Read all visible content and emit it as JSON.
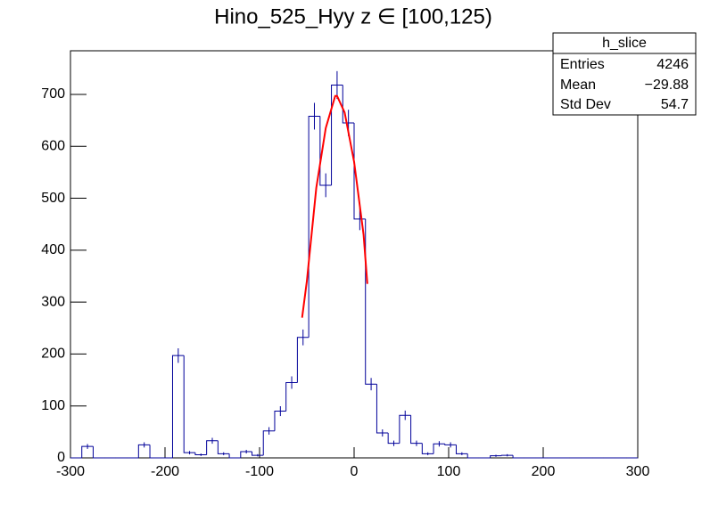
{
  "chart_data": {
    "type": "histogram",
    "title": "Hino_525_Hyy z  ∈ [100,125)",
    "bins": [
      -300,
      -288,
      -276,
      -264,
      -252,
      -240,
      -228,
      -216,
      -204,
      -192,
      -180,
      -168,
      -156,
      -144,
      -132,
      -120,
      -108,
      -96,
      -84,
      -72,
      -60,
      -48,
      -36,
      -24,
      -12,
      0,
      12,
      24,
      36,
      48,
      60,
      72,
      84,
      96,
      108,
      120,
      132,
      144,
      156,
      168,
      180,
      192,
      204,
      216,
      228,
      240,
      252,
      264,
      276,
      288,
      300
    ],
    "values": [
      0,
      22,
      0,
      0,
      0,
      0,
      25,
      0,
      0,
      197,
      10,
      6,
      33,
      8,
      0,
      12,
      5,
      52,
      90,
      145,
      232,
      658,
      525,
      718,
      645,
      460,
      142,
      48,
      28,
      82,
      28,
      8,
      27,
      25,
      8,
      0,
      0,
      4,
      5,
      0,
      0,
      0,
      0,
      0,
      0,
      0,
      0,
      0,
      0,
      0
    ],
    "errors": [
      0,
      4.7,
      0,
      0,
      0,
      0,
      5,
      0,
      0,
      14,
      3.2,
      2.4,
      5.7,
      2.8,
      0,
      3.5,
      2.2,
      7.2,
      9.5,
      12,
      15.2,
      25.7,
      22.9,
      26.8,
      25.4,
      21.4,
      11.9,
      6.9,
      5.3,
      9.1,
      5.3,
      2.8,
      5.2,
      5,
      2.8,
      0,
      0,
      2,
      2.2,
      0,
      0,
      0,
      0,
      0,
      0,
      0,
      0,
      0,
      0,
      0
    ],
    "color": "#000099",
    "fit": {
      "color": "#ff0000",
      "x": [
        -55,
        -50,
        -40,
        -30,
        -20,
        -18,
        -10,
        0,
        10,
        14
      ],
      "values": [
        270,
        340,
        520,
        635,
        697,
        697,
        665,
        570,
        430,
        335
      ]
    },
    "xlim": [
      -300,
      300
    ],
    "xticks": [
      -300,
      -200,
      -100,
      0,
      100,
      200,
      300
    ],
    "ylim": [
      0,
      784
    ],
    "yticks": [
      0,
      100,
      200,
      300,
      400,
      500,
      600,
      700
    ],
    "stats": {
      "title": "h_slice",
      "rows": [
        [
          "Entries",
          "4246"
        ],
        [
          "Mean",
          "−29.88"
        ],
        [
          "Std Dev",
          "54.7"
        ]
      ]
    }
  }
}
